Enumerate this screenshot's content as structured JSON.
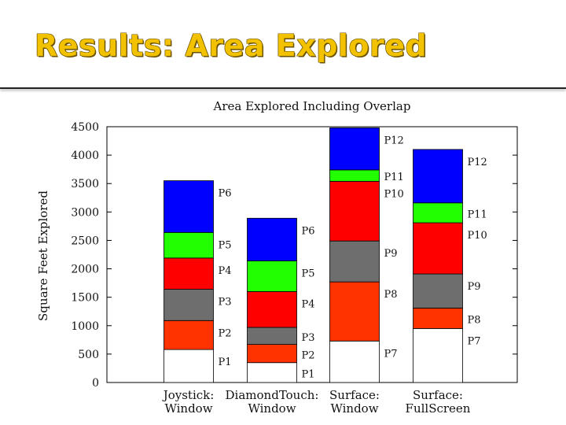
{
  "slide": {
    "title": "Results: Area Explored"
  },
  "chart_data": {
    "type": "bar",
    "stacked": true,
    "title": "Area Explored Including Overlap",
    "ylabel": "Square Feet Explored",
    "xlabel": "",
    "ylim": [
      0,
      4500
    ],
    "yticks": [
      0,
      500,
      1000,
      1500,
      2000,
      2500,
      3000,
      3500,
      4000,
      4500
    ],
    "grid": false,
    "categories": [
      {
        "line1": "Joystick:",
        "line2": "Window"
      },
      {
        "line1": "DiamondTouch:",
        "line2": "Window"
      },
      {
        "line1": "Surface:",
        "line2": "Window"
      },
      {
        "line1": "Surface:",
        "line2": "FullScreen"
      }
    ],
    "layer_colors": [
      "#ffffff",
      "#ff3300",
      "#6e6e6e",
      "#ff0000",
      "#22ff00",
      "#0000ff"
    ],
    "bars": [
      {
        "segments": [
          {
            "label": "P1",
            "value": 580
          },
          {
            "label": "P2",
            "value": 510
          },
          {
            "label": "P3",
            "value": 550
          },
          {
            "label": "P4",
            "value": 550
          },
          {
            "label": "P5",
            "value": 450
          },
          {
            "label": "P6",
            "value": 910
          }
        ]
      },
      {
        "segments": [
          {
            "label": "P1",
            "value": 350
          },
          {
            "label": "P2",
            "value": 320
          },
          {
            "label": "P3",
            "value": 300
          },
          {
            "label": "P4",
            "value": 630
          },
          {
            "label": "P5",
            "value": 540
          },
          {
            "label": "P6",
            "value": 750
          }
        ]
      },
      {
        "segments": [
          {
            "label": "P7",
            "value": 730
          },
          {
            "label": "P8",
            "value": 1040
          },
          {
            "label": "P9",
            "value": 720
          },
          {
            "label": "P10",
            "value": 1050
          },
          {
            "label": "P11",
            "value": 200
          },
          {
            "label": "P12",
            "value": 740
          }
        ]
      },
      {
        "segments": [
          {
            "label": "P7",
            "value": 950
          },
          {
            "label": "P8",
            "value": 360
          },
          {
            "label": "P9",
            "value": 600
          },
          {
            "label": "P10",
            "value": 900
          },
          {
            "label": "P11",
            "value": 350
          },
          {
            "label": "P12",
            "value": 940
          }
        ]
      }
    ]
  }
}
